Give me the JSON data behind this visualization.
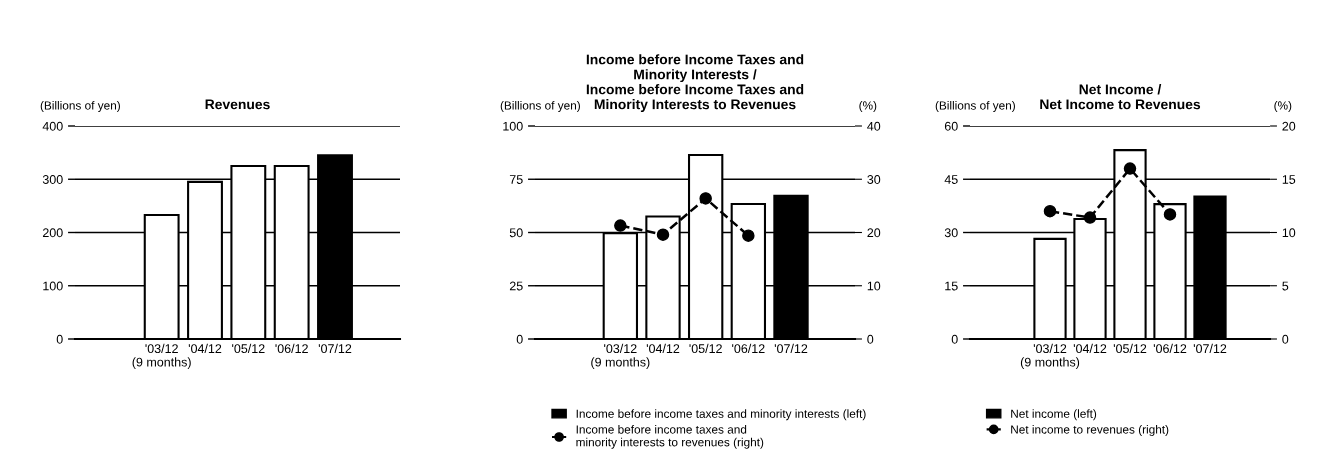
{
  "chart_data": [
    {
      "type": "bar",
      "title": "Revenues",
      "ylabel": "(Billions of yen)",
      "categories": [
        "'03/12\n(9 months)",
        "'04/12",
        "'05/12",
        "'06/12",
        "'07/12"
      ],
      "series": [
        {
          "colors": [
            "#ffffff",
            "#ffffff",
            "#ffffff",
            "#ffffff",
            "#000000"
          ],
          "values": [
            233,
            295,
            325,
            325,
            345
          ]
        }
      ],
      "ylim": [
        0,
        400
      ],
      "yticks": [
        0,
        100,
        200,
        300,
        400
      ],
      "grid": "y"
    },
    {
      "type": "bar",
      "title": "Income before Income Taxes and\nMinority Interests /\nIncome before Income Taxes and\nMinority Interests to Revenues",
      "ylabel": "(Billions of yen)",
      "y2label": "(%)",
      "categories": [
        "'03/12\n(9 months)",
        "'04/12",
        "'05/12",
        "'06/12",
        "'07/12"
      ],
      "series": [
        {
          "name": "Income before income taxes and minority interests (left)",
          "color": "#000000",
          "colors": [
            "#ffffff",
            "#ffffff",
            "#ffffff",
            "#ffffff",
            "#000000"
          ],
          "values": [
            49.7,
            57.5,
            86.4,
            63.4,
            67.2
          ]
        },
        {
          "name": "Income before income taxes and\nminority interests to revenues (right)",
          "type": "line",
          "axis": "y2",
          "color": "#000000",
          "marker": "circle",
          "line_style": "dashed",
          "values": [
            21.3,
            19.6,
            26.4,
            19.4,
            null
          ]
        }
      ],
      "ylim": [
        0,
        100
      ],
      "yticks": [
        0,
        25,
        50,
        75,
        100
      ],
      "y2lim": [
        0,
        40
      ],
      "y2ticks": [
        0,
        10,
        20,
        30,
        40
      ],
      "grid": "y",
      "legend": "bottom"
    },
    {
      "type": "bar",
      "title": "Net Income /\nNet Income to Revenues",
      "ylabel": "(Billions of yen)",
      "y2label": "(%)",
      "categories": [
        "'03/12\n(9 months)",
        "'04/12",
        "'05/12",
        "'06/12",
        "'07/12"
      ],
      "series": [
        {
          "name": "Net income (left)",
          "color": "#000000",
          "colors": [
            "#ffffff",
            "#ffffff",
            "#ffffff",
            "#ffffff",
            "#000000"
          ],
          "values": [
            28.2,
            33.8,
            53.2,
            38.0,
            40.1
          ]
        },
        {
          "name": "Net income to revenues (right)",
          "type": "line",
          "axis": "y2",
          "color": "#000000",
          "marker": "circle",
          "line_style": "dashed",
          "values": [
            12.0,
            11.4,
            16.0,
            11.7,
            null
          ]
        }
      ],
      "ylim": [
        0,
        60
      ],
      "yticks": [
        0,
        15,
        30,
        45,
        60
      ],
      "y2lim": [
        0,
        20
      ],
      "y2ticks": [
        0,
        5,
        10,
        15,
        20
      ],
      "grid": "y",
      "legend": "bottom"
    }
  ]
}
